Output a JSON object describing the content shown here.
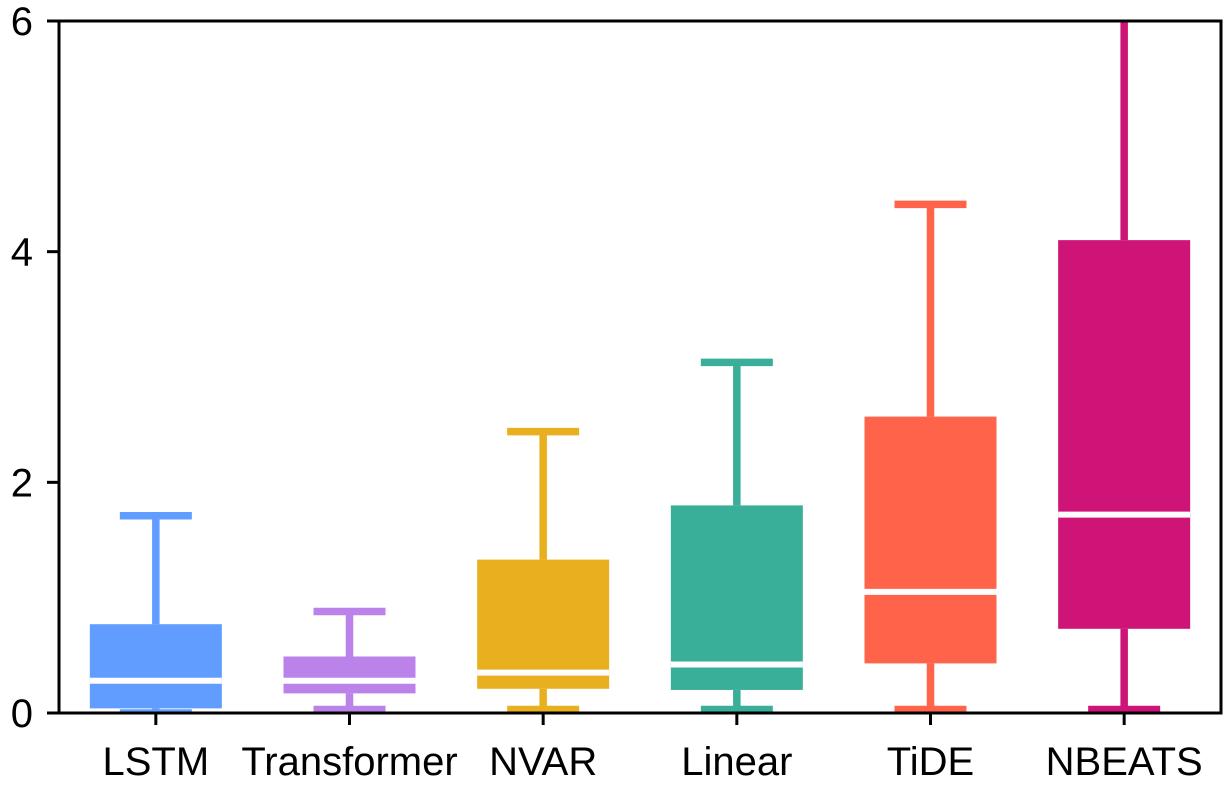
{
  "chart_data": {
    "type": "box",
    "title": "",
    "xlabel": "",
    "ylabel": "",
    "ylim": [
      0,
      6
    ],
    "yticks": [
      "0",
      "2",
      "4",
      "6"
    ],
    "grid": false,
    "legend": "none",
    "categories": [
      "LSTM",
      "Transformer",
      "NVAR",
      "Linear",
      "TiDE",
      "NBEATS"
    ],
    "colors": [
      "#619CFF",
      "#BB83E9",
      "#E8AF1E",
      "#39AE98",
      "#FF644A",
      "#CF1477"
    ],
    "boxes": [
      {
        "whisker_low": 0.0,
        "q1": 0.04,
        "median": 0.28,
        "q3": 0.77,
        "whisker_high": 1.71
      },
      {
        "whisker_low": 0.03,
        "q1": 0.17,
        "median": 0.28,
        "q3": 0.49,
        "whisker_high": 0.88
      },
      {
        "whisker_low": 0.03,
        "q1": 0.21,
        "median": 0.35,
        "q3": 1.33,
        "whisker_high": 2.44
      },
      {
        "whisker_low": 0.03,
        "q1": 0.2,
        "median": 0.42,
        "q3": 1.8,
        "whisker_high": 3.04
      },
      {
        "whisker_low": 0.03,
        "q1": 0.43,
        "median": 1.05,
        "q3": 2.57,
        "whisker_high": 4.41
      },
      {
        "whisker_low": 0.03,
        "q1": 0.73,
        "median": 1.72,
        "q3": 4.1,
        "whisker_high": 6.2
      }
    ]
  }
}
